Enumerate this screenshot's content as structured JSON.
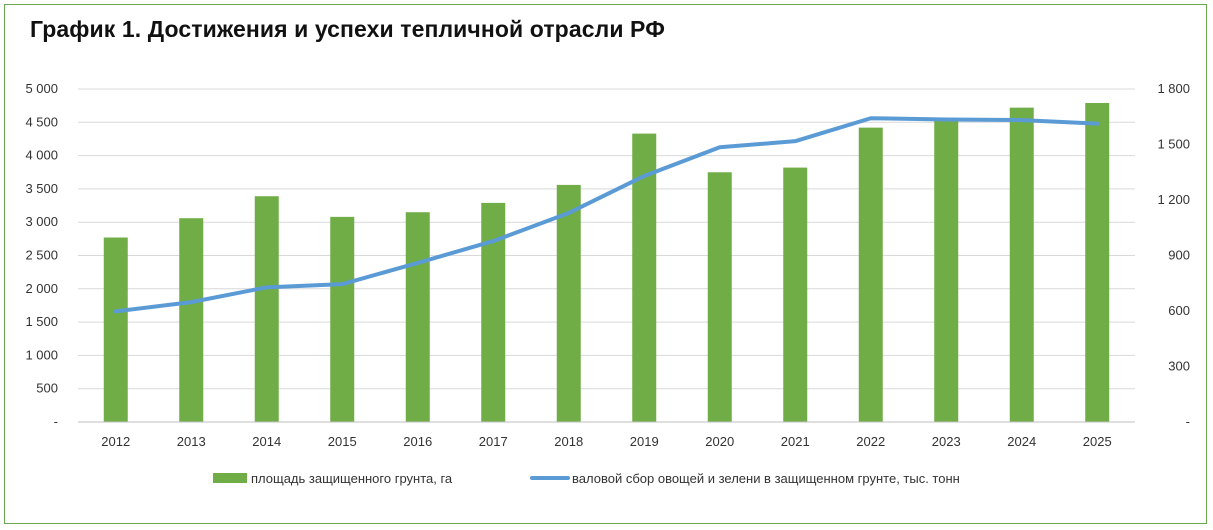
{
  "title": "График 1. Достижения и успехи тепличной отрасли РФ",
  "chart_data": {
    "type": "bar+line",
    "categories": [
      "2012",
      "2013",
      "2014",
      "2015",
      "2016",
      "2017",
      "2018",
      "2019",
      "2020",
      "2021",
      "2022",
      "2023",
      "2024",
      "2025"
    ],
    "series": [
      {
        "name": "площадь защищенного грунта, га",
        "type": "bar",
        "axis": "left",
        "color": "#70ad47",
        "values": [
          2770,
          3060,
          3390,
          3080,
          3150,
          3290,
          3560,
          4330,
          3750,
          3820,
          4420,
          4540,
          4720,
          4790
        ]
      },
      {
        "name": "валовой сбор овощей и зелени в защищенном грунте, тыс. тонн",
        "type": "line",
        "axis": "right",
        "color": "#5b9bd5",
        "values": [
          598,
          648,
          728,
          745,
          860,
          978,
          1130,
          1330,
          1485,
          1518,
          1642,
          1635,
          1632,
          1613
        ]
      }
    ],
    "y_left": {
      "min": 0,
      "max": 5000,
      "step": 500,
      "tick_labels": [
        "-",
        "500",
        "1 000",
        "1 500",
        "2 000",
        "2 500",
        "3 000",
        "3 500",
        "4 000",
        "4 500",
        "5 000"
      ]
    },
    "y_right": {
      "min": 0,
      "max": 1800,
      "step": 300,
      "tick_labels": [
        "-",
        "300",
        "600",
        "900",
        "1 200",
        "1 500",
        "1 800"
      ]
    },
    "grid": true,
    "legend_position": "bottom"
  }
}
